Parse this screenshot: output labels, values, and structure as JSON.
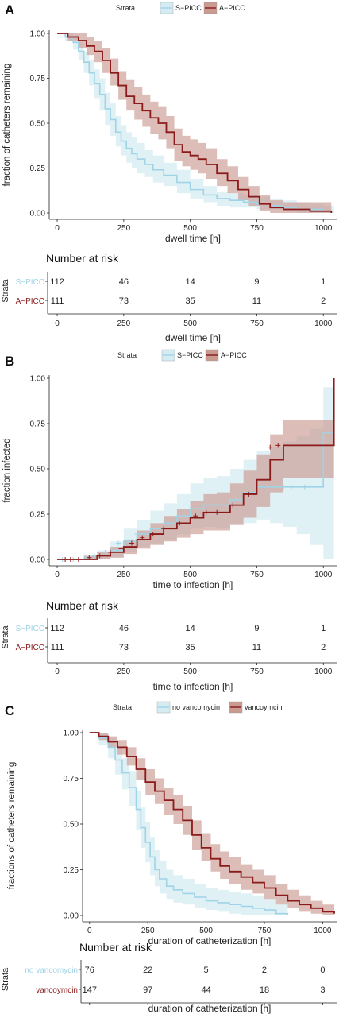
{
  "colors": {
    "s_picc": "#9fd3e6",
    "a_picc": "#8b1a1a",
    "s_band": "#d6ecf3",
    "a_band": "#c99a90"
  },
  "strata_word": "Strata",
  "risk_title": "Number at risk",
  "chart_data": [
    {
      "type": "line",
      "panel": "A",
      "xlabel": "dwell time [h]",
      "ylabel": "fraction of catheters remaining",
      "xlim": [
        -30,
        1050
      ],
      "ylim": [
        0,
        1
      ],
      "xticks": [
        "0",
        "250",
        "500",
        "750",
        "1000"
      ],
      "yticks": [
        "0.00",
        "0.25",
        "0.50",
        "0.75",
        "1.00"
      ],
      "legend_title": "Strata",
      "legend": [
        "S−PICC",
        "A−PICC"
      ],
      "series": [
        {
          "name": "S−PICC",
          "x": [
            0,
            30,
            60,
            80,
            100,
            120,
            140,
            160,
            180,
            200,
            220,
            240,
            260,
            280,
            300,
            330,
            360,
            400,
            450,
            500,
            550,
            600,
            650,
            700,
            750,
            800,
            850,
            900,
            950,
            1000,
            1040
          ],
          "y": [
            1.0,
            0.98,
            0.95,
            0.9,
            0.84,
            0.78,
            0.72,
            0.66,
            0.58,
            0.52,
            0.45,
            0.4,
            0.36,
            0.33,
            0.3,
            0.27,
            0.24,
            0.21,
            0.17,
            0.13,
            0.1,
            0.08,
            0.07,
            0.06,
            0.05,
            0.04,
            0.03,
            0.02,
            0.02,
            0.01,
            0.01
          ],
          "lower": [
            1.0,
            0.96,
            0.91,
            0.85,
            0.78,
            0.71,
            0.64,
            0.57,
            0.49,
            0.43,
            0.37,
            0.32,
            0.28,
            0.25,
            0.22,
            0.2,
            0.17,
            0.15,
            0.11,
            0.08,
            0.06,
            0.04,
            0.03,
            0.03,
            0.02,
            0.02,
            0.01,
            0.0,
            0.0,
            0.0,
            0.0
          ],
          "upper": [
            1.0,
            1.0,
            0.99,
            0.95,
            0.9,
            0.85,
            0.8,
            0.75,
            0.67,
            0.61,
            0.54,
            0.49,
            0.45,
            0.42,
            0.39,
            0.35,
            0.32,
            0.28,
            0.24,
            0.19,
            0.15,
            0.12,
            0.11,
            0.1,
            0.09,
            0.08,
            0.07,
            0.06,
            0.05,
            0.04,
            0.04
          ]
        },
        {
          "name": "A−PICC",
          "x": [
            0,
            40,
            80,
            110,
            140,
            170,
            200,
            230,
            260,
            290,
            320,
            350,
            380,
            410,
            440,
            470,
            500,
            530,
            560,
            600,
            640,
            680,
            720,
            760,
            800,
            850,
            900,
            950,
            1000,
            1030
          ],
          "y": [
            1.0,
            0.98,
            0.96,
            0.93,
            0.9,
            0.85,
            0.78,
            0.71,
            0.65,
            0.61,
            0.57,
            0.53,
            0.5,
            0.45,
            0.38,
            0.34,
            0.32,
            0.3,
            0.27,
            0.22,
            0.18,
            0.13,
            0.09,
            0.05,
            0.03,
            0.02,
            0.02,
            0.01,
            0.01,
            0.0
          ],
          "lower": [
            1.0,
            0.96,
            0.92,
            0.88,
            0.84,
            0.78,
            0.71,
            0.63,
            0.57,
            0.52,
            0.48,
            0.44,
            0.41,
            0.36,
            0.29,
            0.26,
            0.24,
            0.22,
            0.19,
            0.15,
            0.11,
            0.07,
            0.04,
            0.01,
            0.0,
            0.0,
            0.0,
            0.0,
            0.0,
            0.0
          ],
          "upper": [
            1.0,
            1.0,
            1.0,
            0.98,
            0.96,
            0.92,
            0.86,
            0.79,
            0.74,
            0.7,
            0.66,
            0.62,
            0.59,
            0.54,
            0.47,
            0.43,
            0.41,
            0.39,
            0.36,
            0.3,
            0.26,
            0.2,
            0.15,
            0.1,
            0.07,
            0.06,
            0.06,
            0.06,
            0.06,
            0.06
          ]
        }
      ],
      "risk_table": {
        "x": [
          0,
          250,
          500,
          750,
          1000
        ],
        "rows": [
          {
            "name": "S−PICC",
            "values": [
              "112",
              "46",
              "14",
              "9",
              "1"
            ]
          },
          {
            "name": "A−PICC",
            "values": [
              "111",
              "73",
              "35",
              "11",
              "2"
            ]
          }
        ]
      }
    },
    {
      "type": "line",
      "panel": "B",
      "xlabel": "time to infection [h]",
      "ylabel": "fraction infected",
      "xlim": [
        -30,
        1050
      ],
      "ylim": [
        0,
        1
      ],
      "xticks": [
        "0",
        "250",
        "500",
        "750",
        "1000"
      ],
      "yticks": [
        "0.00",
        "0.25",
        "0.50",
        "0.75",
        "1.00"
      ],
      "legend_title": "Strata",
      "legend": [
        "S−PICC",
        "A−PICC"
      ],
      "series": [
        {
          "name": "S−PICC",
          "x": [
            0,
            100,
            150,
            200,
            250,
            300,
            350,
            400,
            450,
            500,
            550,
            600,
            650,
            700,
            750,
            800,
            850,
            900,
            950,
            1000,
            1040
          ],
          "y": [
            0.0,
            0.0,
            0.02,
            0.05,
            0.1,
            0.14,
            0.17,
            0.2,
            0.24,
            0.28,
            0.3,
            0.3,
            0.33,
            0.37,
            0.4,
            0.4,
            0.4,
            0.4,
            0.4,
            0.7,
            0.7
          ],
          "lower": [
            0.0,
            0.0,
            0.0,
            0.01,
            0.04,
            0.07,
            0.09,
            0.11,
            0.14,
            0.17,
            0.18,
            0.17,
            0.19,
            0.2,
            0.22,
            0.2,
            0.18,
            0.14,
            0.08,
            0.0,
            0.0
          ],
          "upper": [
            0.0,
            0.02,
            0.05,
            0.1,
            0.17,
            0.22,
            0.27,
            0.31,
            0.36,
            0.42,
            0.45,
            0.46,
            0.5,
            0.55,
            0.6,
            0.62,
            0.65,
            0.68,
            0.72,
            0.95,
            0.95
          ],
          "censor_x": [
            20,
            60,
            110,
            140,
            180,
            230,
            300,
            420,
            850,
            880,
            930
          ],
          "censor_y": [
            0.0,
            0.0,
            0.01,
            0.02,
            0.04,
            0.09,
            0.14,
            0.2,
            0.4,
            0.4,
            0.4
          ]
        },
        {
          "name": "A−PICC",
          "x": [
            0,
            100,
            150,
            200,
            250,
            300,
            350,
            400,
            450,
            500,
            550,
            600,
            650,
            700,
            750,
            800,
            850,
            900,
            950,
            1000,
            1030,
            1040
          ],
          "y": [
            0.0,
            0.0,
            0.02,
            0.04,
            0.07,
            0.11,
            0.14,
            0.17,
            0.2,
            0.23,
            0.26,
            0.26,
            0.3,
            0.36,
            0.44,
            0.55,
            0.63,
            0.63,
            0.63,
            0.63,
            0.63,
            1.0
          ],
          "lower": [
            0.0,
            0.0,
            0.0,
            0.01,
            0.03,
            0.06,
            0.08,
            0.1,
            0.12,
            0.14,
            0.16,
            0.16,
            0.19,
            0.23,
            0.29,
            0.37,
            0.45,
            0.45,
            0.45,
            0.45,
            0.45,
            0.45
          ],
          "upper": [
            0.0,
            0.02,
            0.04,
            0.07,
            0.11,
            0.16,
            0.2,
            0.24,
            0.28,
            0.32,
            0.36,
            0.37,
            0.42,
            0.49,
            0.58,
            0.69,
            0.77,
            0.77,
            0.77,
            0.77,
            0.77,
            1.0
          ],
          "censor_x": [
            30,
            50,
            80,
            120,
            160,
            200,
            240,
            280,
            320,
            360,
            400,
            460,
            520,
            560,
            600,
            660,
            720,
            800,
            830
          ],
          "censor_y": [
            0.0,
            0.0,
            0.0,
            0.01,
            0.02,
            0.04,
            0.06,
            0.09,
            0.12,
            0.14,
            0.17,
            0.2,
            0.24,
            0.26,
            0.26,
            0.3,
            0.36,
            0.62,
            0.63
          ]
        }
      ],
      "risk_table": {
        "x": [
          0,
          250,
          500,
          750,
          1000
        ],
        "rows": [
          {
            "name": "S−PICC",
            "values": [
              "112",
              "46",
              "14",
              "9",
              "1"
            ]
          },
          {
            "name": "A−PICC",
            "values": [
              "111",
              "73",
              "35",
              "11",
              "2"
            ]
          }
        ]
      }
    },
    {
      "type": "line",
      "panel": "C",
      "xlabel": "duration of catheterization [h]",
      "ylabel": "fractions of catheters remaining",
      "xlim": [
        -30,
        1060
      ],
      "ylim": [
        0,
        1
      ],
      "xticks": [
        "0",
        "250",
        "500",
        "750",
        "1000"
      ],
      "yticks": [
        "0.00",
        "0.25",
        "0.50",
        "0.75",
        "1.00"
      ],
      "legend_title": "Strata",
      "legend": [
        "no vancomycin",
        "vancoymcin"
      ],
      "series": [
        {
          "name": "no vancomycin",
          "x": [
            0,
            40,
            80,
            110,
            140,
            170,
            200,
            220,
            240,
            260,
            280,
            300,
            330,
            360,
            400,
            450,
            500,
            550,
            600,
            650,
            700,
            750,
            800,
            850
          ],
          "y": [
            1.0,
            0.97,
            0.92,
            0.85,
            0.78,
            0.7,
            0.58,
            0.48,
            0.4,
            0.32,
            0.25,
            0.2,
            0.16,
            0.14,
            0.12,
            0.1,
            0.08,
            0.07,
            0.06,
            0.05,
            0.04,
            0.03,
            0.01,
            0.0
          ],
          "lower": [
            1.0,
            0.93,
            0.86,
            0.77,
            0.69,
            0.6,
            0.47,
            0.37,
            0.29,
            0.22,
            0.16,
            0.12,
            0.09,
            0.07,
            0.06,
            0.04,
            0.03,
            0.02,
            0.01,
            0.0,
            0.0,
            0.0,
            0.0,
            0.0
          ],
          "upper": [
            1.0,
            1.0,
            0.97,
            0.92,
            0.86,
            0.79,
            0.68,
            0.59,
            0.51,
            0.43,
            0.36,
            0.3,
            0.25,
            0.22,
            0.2,
            0.17,
            0.15,
            0.14,
            0.13,
            0.12,
            0.11,
            0.09,
            0.06,
            0.04
          ]
        },
        {
          "name": "vancoymcin",
          "x": [
            0,
            40,
            80,
            120,
            160,
            200,
            240,
            280,
            320,
            360,
            400,
            440,
            480,
            520,
            560,
            600,
            650,
            700,
            750,
            800,
            850,
            900,
            950,
            1000,
            1050
          ],
          "y": [
            1.0,
            0.98,
            0.95,
            0.92,
            0.87,
            0.8,
            0.73,
            0.68,
            0.63,
            0.58,
            0.52,
            0.44,
            0.37,
            0.31,
            0.27,
            0.24,
            0.21,
            0.18,
            0.15,
            0.11,
            0.08,
            0.06,
            0.04,
            0.02,
            0.01
          ],
          "lower": [
            1.0,
            0.96,
            0.92,
            0.88,
            0.82,
            0.74,
            0.66,
            0.61,
            0.55,
            0.5,
            0.44,
            0.36,
            0.3,
            0.24,
            0.2,
            0.17,
            0.14,
            0.12,
            0.09,
            0.06,
            0.04,
            0.02,
            0.01,
            0.0,
            0.0
          ],
          "upper": [
            1.0,
            1.0,
            0.98,
            0.96,
            0.92,
            0.86,
            0.8,
            0.75,
            0.7,
            0.66,
            0.6,
            0.52,
            0.45,
            0.39,
            0.35,
            0.32,
            0.28,
            0.25,
            0.22,
            0.17,
            0.14,
            0.11,
            0.08,
            0.06,
            0.05
          ]
        }
      ],
      "risk_table": {
        "x": [
          0,
          250,
          500,
          750,
          1000
        ],
        "rows": [
          {
            "name": "no vancomycin",
            "values": [
              "76",
              "22",
              "5",
              "2",
              "0"
            ]
          },
          {
            "name": "vancoymcin",
            "values": [
              "147",
              "97",
              "44",
              "18",
              "3"
            ]
          }
        ]
      }
    }
  ]
}
